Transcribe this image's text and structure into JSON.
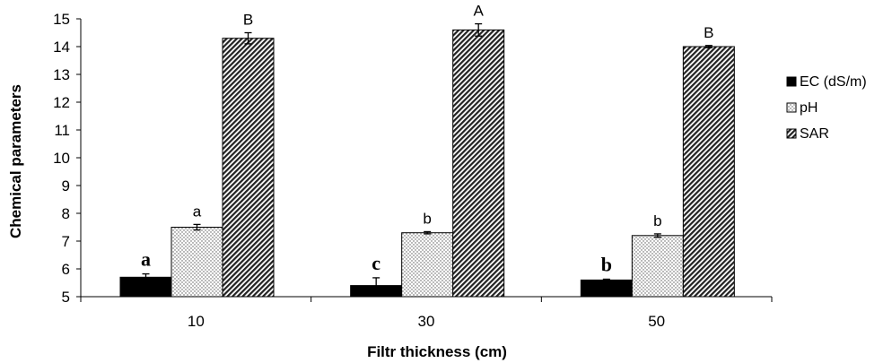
{
  "chart_data": {
    "type": "bar",
    "title": "",
    "xlabel": "Filtr thickness (cm)",
    "ylabel": "Chemical parameters",
    "categories": [
      "10",
      "30",
      "50"
    ],
    "ylim": [
      5,
      15
    ],
    "yticks": [
      "5",
      "6",
      "7",
      "8",
      "9",
      "10",
      "11",
      "12",
      "13",
      "14",
      "15"
    ],
    "grid": false,
    "legend_position": "right",
    "series": [
      {
        "name": "EC (dS/m)",
        "fill": "solid-black",
        "color": "#000000",
        "values": [
          5.7,
          5.4,
          5.6
        ],
        "errors": [
          0.12,
          0.28,
          0.03
        ],
        "labels": [
          "a",
          "c",
          "b"
        ],
        "label_style": "serif-bold"
      },
      {
        "name": "pH",
        "fill": "dotted",
        "color": "#ffffff",
        "values": [
          7.5,
          7.3,
          7.2
        ],
        "errors": [
          0.1,
          0.04,
          0.06
        ],
        "labels": [
          "a",
          "b",
          "b"
        ],
        "label_style": "sans"
      },
      {
        "name": "SAR",
        "fill": "diagonal-hatch",
        "color": "#ffffff",
        "values": [
          14.3,
          14.6,
          14.0
        ],
        "errors": [
          0.2,
          0.22,
          0.04
        ],
        "labels": [
          "B",
          "A",
          "B"
        ],
        "label_style": "sans"
      }
    ]
  }
}
